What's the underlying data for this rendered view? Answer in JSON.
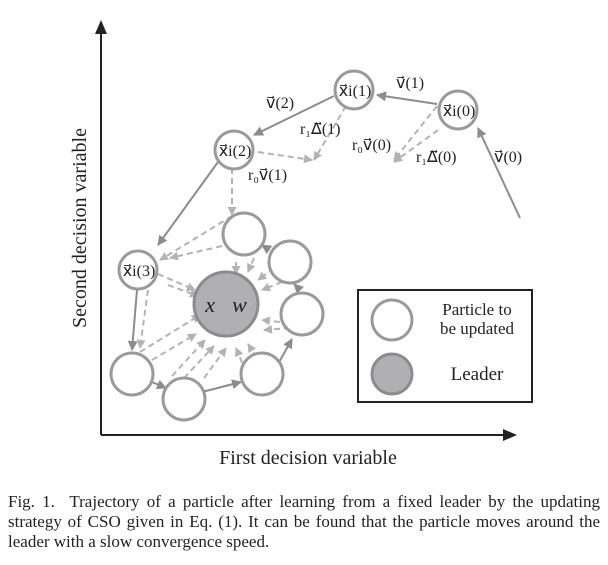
{
  "axes": {
    "x_label": "First decision variable",
    "y_label": "Second decision variable"
  },
  "nodes": {
    "x0": "x⃗i(0)",
    "x1": "x⃗i(1)",
    "x2": "x⃗i(2)",
    "x3": "x⃗i(3)",
    "leader": "x⃗w"
  },
  "vectors": {
    "v0": "v⃗(0)",
    "v1": "v⃗(1)",
    "v2": "v⃗(2)",
    "r1_delta0": "r₁Δ⃗(0)",
    "r1_delta1": "r₁Δ⃗(1)",
    "r0_v0": "r₀v⃗(0)",
    "r0_v1": "r₀v⃗(1)"
  },
  "legend": {
    "particle_line1": "Particle to",
    "particle_line2": "be updated",
    "leader": "Leader"
  },
  "caption": {
    "label": "Fig. 1.",
    "text": "Trajectory of a particle after learning from a fixed leader by the updating strategy of CSO given in Eq. (1). It can be found that the particle moves around the leader with a slow convergence speed."
  },
  "colors": {
    "particle_stroke": "#9a9a9a",
    "leader_fill": "#b0b0b3",
    "solid_arrow": "#8c8c8c",
    "dashed_arrow": "#b3b3b3",
    "axis": "#222222"
  }
}
